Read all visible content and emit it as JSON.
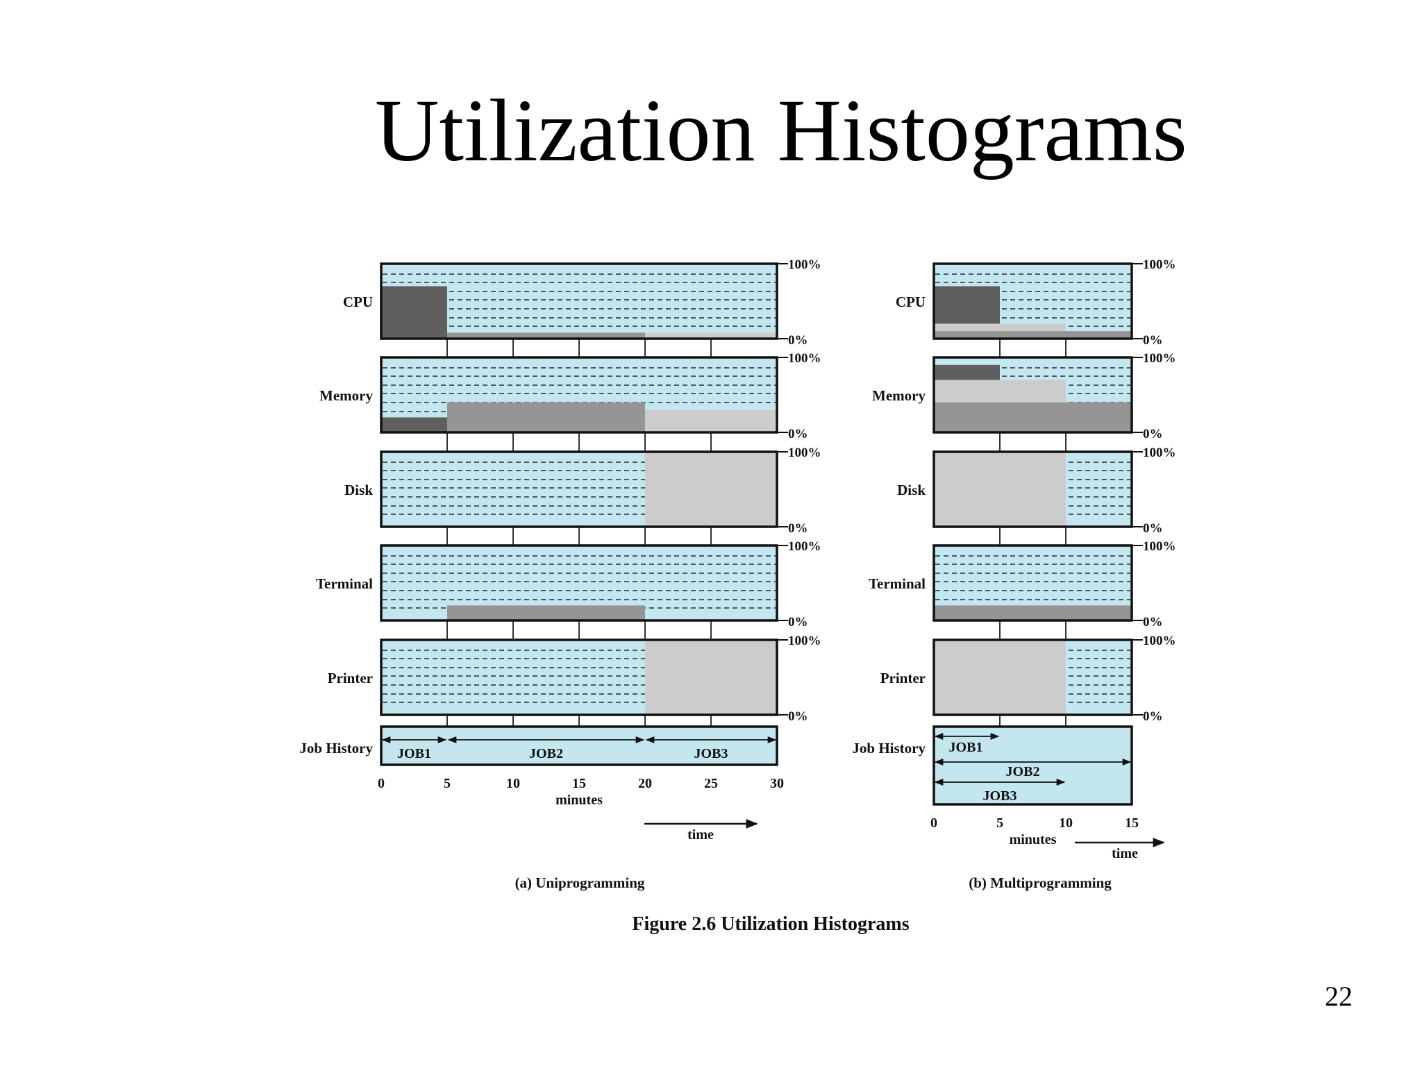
{
  "slide": {
    "title": "Utilization Histograms",
    "page_number": "22"
  },
  "colors": {
    "idle_bg": "#c4e6ef",
    "dash": "#1f2d33",
    "job1": "#5f5f5f",
    "job2": "#959595",
    "job3": "#cccccc",
    "frame": "#111111"
  },
  "figure": {
    "caption": "Figure 2.6  Utilization Histograms",
    "pct_top": "100%",
    "pct_bottom": "0%",
    "axis_label": "minutes",
    "time_label": "time",
    "row_labels": [
      "CPU",
      "Memory",
      "Disk",
      "Terminal",
      "Printer",
      "Job History"
    ]
  },
  "chart_data": [
    {
      "type": "area",
      "subtitle": "(a) Uniprogramming",
      "xlabel": "minutes",
      "x_ticks": [
        "0",
        "5",
        "10",
        "15",
        "20",
        "25",
        "30"
      ],
      "xlim": [
        0,
        30
      ],
      "ylim": [
        0,
        100
      ],
      "y_unit": "%",
      "series": [
        {
          "name": "CPU",
          "segments": [
            {
              "job": "JOB1",
              "start": 0,
              "end": 5,
              "value": 70
            },
            {
              "job": "JOB2",
              "start": 5,
              "end": 20,
              "value": 8
            },
            {
              "job": "JOB3",
              "start": 20,
              "end": 30,
              "value": 8
            }
          ]
        },
        {
          "name": "Memory",
          "segments": [
            {
              "job": "JOB1",
              "start": 0,
              "end": 5,
              "value": 20
            },
            {
              "job": "JOB2",
              "start": 5,
              "end": 20,
              "value": 40
            },
            {
              "job": "JOB3",
              "start": 20,
              "end": 30,
              "value": 30
            }
          ]
        },
        {
          "name": "Disk",
          "segments": [
            {
              "job": "JOB3",
              "start": 20,
              "end": 30,
              "value": 100
            }
          ]
        },
        {
          "name": "Terminal",
          "segments": [
            {
              "job": "JOB2",
              "start": 5,
              "end": 20,
              "value": 20
            }
          ]
        },
        {
          "name": "Printer",
          "segments": [
            {
              "job": "JOB3",
              "start": 20,
              "end": 30,
              "value": 100
            }
          ]
        }
      ],
      "job_history": [
        {
          "job": "JOB1",
          "start": 0,
          "end": 5
        },
        {
          "job": "JOB2",
          "start": 5,
          "end": 20
        },
        {
          "job": "JOB3",
          "start": 20,
          "end": 30
        }
      ]
    },
    {
      "type": "area",
      "subtitle": "(b) Multiprogramming",
      "xlabel": "minutes",
      "x_ticks": [
        "0",
        "5",
        "10",
        "15"
      ],
      "xlim": [
        0,
        15
      ],
      "ylim": [
        0,
        100
      ],
      "y_unit": "%",
      "series": [
        {
          "name": "CPU",
          "segments": [
            {
              "job": "JOB1",
              "start": 0,
              "end": 5,
              "value": 70
            },
            {
              "job": "JOB3",
              "start": 0,
              "end": 10,
              "value": 20
            },
            {
              "job": "JOB2",
              "start": 0,
              "end": 15,
              "value": 10
            }
          ]
        },
        {
          "name": "Memory",
          "segments": [
            {
              "job": "JOB1",
              "start": 0,
              "end": 5,
              "value": 90
            },
            {
              "job": "JOB3",
              "start": 0,
              "end": 10,
              "value": 70
            },
            {
              "job": "JOB2",
              "start": 0,
              "end": 15,
              "value": 40
            }
          ]
        },
        {
          "name": "Disk",
          "segments": [
            {
              "job": "JOB3",
              "start": 0,
              "end": 10,
              "value": 100
            }
          ]
        },
        {
          "name": "Terminal",
          "segments": [
            {
              "job": "JOB2",
              "start": 0,
              "end": 15,
              "value": 20
            }
          ]
        },
        {
          "name": "Printer",
          "segments": [
            {
              "job": "JOB3",
              "start": 0,
              "end": 10,
              "value": 100
            }
          ]
        }
      ],
      "job_history": [
        {
          "job": "JOB1",
          "start": 0,
          "end": 5
        },
        {
          "job": "JOB2",
          "start": 0,
          "end": 15
        },
        {
          "job": "JOB3",
          "start": 0,
          "end": 10
        }
      ]
    }
  ]
}
